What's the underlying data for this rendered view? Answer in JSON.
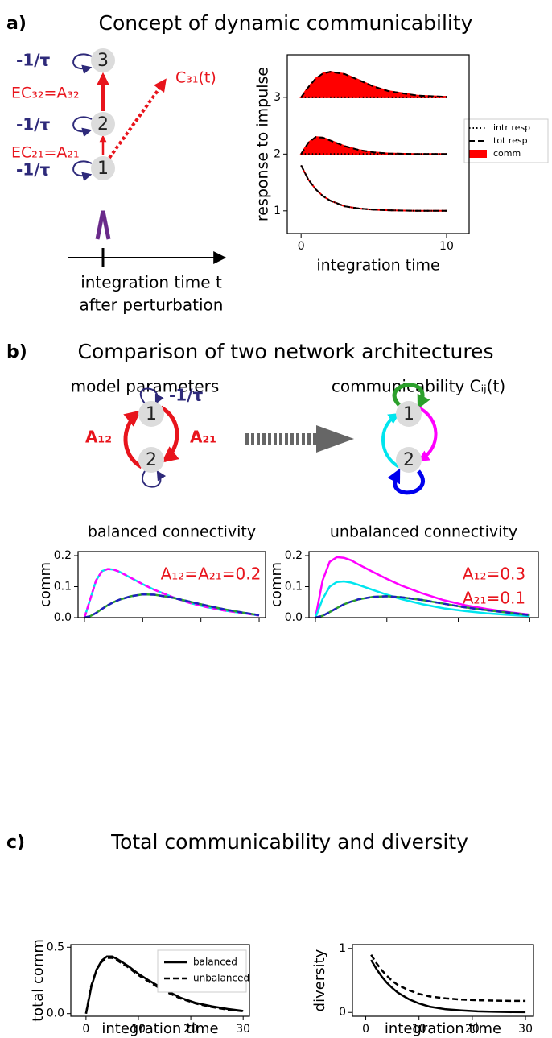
{
  "figure": {
    "panels": [
      {
        "letter": "a)",
        "title": "Concept of dynamic communicability"
      },
      {
        "letter": "b)",
        "title": "Comparison of two network architectures"
      },
      {
        "letter": "c)",
        "title": "Total communicability and diversity"
      }
    ]
  },
  "diagram_a": {
    "self_loops": [
      "-1/τ",
      "-1/τ",
      "-1/τ"
    ],
    "nodes": [
      "3",
      "2",
      "1"
    ],
    "edges": [
      "EC₃₂=A₃₂",
      "EC₂₁=A₂₁"
    ],
    "comm": "C₃₁(t)",
    "axis_label": [
      "integration time t",
      "after perturbation"
    ]
  },
  "diagram_b": {
    "left_title": "model parameters",
    "right_title": "communicability Cᵢⱼ(t)",
    "self_loop": "-1/τ",
    "left_nodes": [
      "1",
      "2"
    ],
    "edges": [
      "A₁₂",
      "A₂₁"
    ],
    "right_nodes": [
      "1",
      "2"
    ]
  },
  "chart_data": [
    {
      "type": "area",
      "xlabel": "integration time",
      "ylabel": "response to impulse",
      "xlim": [
        -0.95,
        11.55
      ],
      "ylim": [
        0.6,
        3.75
      ],
      "xticks": [
        0,
        10
      ],
      "yticks": [
        1,
        2,
        3
      ],
      "x": [
        0,
        0.5,
        1,
        1.5,
        2,
        3,
        4,
        5,
        6,
        8,
        10
      ],
      "fill_color": "#ff0000",
      "legend": [
        {
          "label": "intr resp",
          "style": "dotted"
        },
        {
          "label": "tot resp",
          "style": "dashed"
        },
        {
          "label": "comm",
          "style": "fill"
        }
      ],
      "nodes": [
        {
          "intr": [
            3,
            3,
            3,
            3,
            3,
            3,
            3,
            3,
            3,
            3,
            3
          ],
          "tot": [
            3,
            3.18,
            3.33,
            3.42,
            3.45,
            3.41,
            3.3,
            3.19,
            3.11,
            3.03,
            3.01
          ]
        },
        {
          "intr": [
            2,
            2,
            2,
            2,
            2,
            2,
            2,
            2,
            2,
            2,
            2
          ],
          "tot": [
            2,
            2.2,
            2.3,
            2.29,
            2.24,
            2.14,
            2.07,
            2.03,
            2.01,
            2,
            2
          ]
        },
        {
          "intr": [
            1.8,
            1.55,
            1.38,
            1.26,
            1.18,
            1.08,
            1.04,
            1.02,
            1.01,
            1,
            1
          ],
          "tot": [
            1.8,
            1.55,
            1.38,
            1.26,
            1.18,
            1.08,
            1.04,
            1.02,
            1.01,
            1,
            1
          ]
        }
      ]
    },
    {
      "type": "line",
      "title": "balanced connectivity",
      "ylabel": "comm",
      "xlim": [
        -1.1,
        31.1
      ],
      "ylim": [
        0,
        0.213
      ],
      "xticks": [
        0,
        10,
        20,
        30
      ],
      "xtick_labels": false,
      "yticks": [
        {
          "value": 0,
          "label": "0.0"
        },
        0.1,
        0.2
      ],
      "annotations": [
        "A₁₂=A₂₁=0.2"
      ],
      "annotation_color": "#e8141c",
      "x": [
        0,
        1,
        2,
        3,
        4,
        5,
        6,
        8,
        10,
        12,
        15,
        18,
        21,
        24,
        27,
        30
      ],
      "series": [
        {
          "color": "#00e5ee",
          "style": "solid",
          "values": [
            0,
            0.06,
            0.12,
            0.15,
            0.157,
            0.155,
            0.148,
            0.128,
            0.108,
            0.09,
            0.067,
            0.048,
            0.034,
            0.023,
            0.015,
            0.007
          ]
        },
        {
          "color": "#ff00ff",
          "style": "dashed",
          "values": [
            0,
            0.06,
            0.12,
            0.15,
            0.157,
            0.155,
            0.148,
            0.128,
            0.108,
            0.09,
            0.067,
            0.048,
            0.034,
            0.023,
            0.015,
            0.007
          ]
        },
        {
          "color": "#2ca02c",
          "style": "solid",
          "values": [
            0,
            0.005,
            0.015,
            0.028,
            0.04,
            0.05,
            0.058,
            0.069,
            0.075,
            0.074,
            0.065,
            0.052,
            0.039,
            0.027,
            0.017,
            0.008
          ]
        },
        {
          "color": "#1f1fbf",
          "style": "dashed",
          "values": [
            0,
            0.005,
            0.015,
            0.028,
            0.04,
            0.05,
            0.058,
            0.069,
            0.075,
            0.074,
            0.065,
            0.052,
            0.039,
            0.027,
            0.017,
            0.008
          ]
        }
      ]
    },
    {
      "type": "line",
      "title": "unbalanced connectivity",
      "ylabel": "comm",
      "xlim": [
        -0.9,
        31.2
      ],
      "ylim": [
        0,
        0.213
      ],
      "xticks": [
        0,
        10,
        20,
        30
      ],
      "xtick_labels": false,
      "yticks": [
        {
          "value": 0,
          "label": "0.0"
        },
        0.1,
        0.2
      ],
      "annotations": [
        "A₁₂=0.3",
        "A₂₁=0.1"
      ],
      "annotation_color": "#e8141c",
      "x": [
        0,
        1,
        2,
        3,
        4,
        5,
        6,
        8,
        10,
        12,
        15,
        18,
        21,
        24,
        27,
        30
      ],
      "series": [
        {
          "color": "#ff00ff",
          "style": "solid",
          "values": [
            0,
            0.12,
            0.18,
            0.195,
            0.193,
            0.185,
            0.172,
            0.148,
            0.125,
            0.104,
            0.078,
            0.056,
            0.04,
            0.028,
            0.018,
            0.01
          ]
        },
        {
          "color": "#00e5ee",
          "style": "solid",
          "values": [
            0,
            0.06,
            0.1,
            0.115,
            0.117,
            0.113,
            0.106,
            0.09,
            0.074,
            0.06,
            0.043,
            0.03,
            0.021,
            0.014,
            0.009,
            0.005
          ]
        },
        {
          "color": "#2ca02c",
          "style": "solid",
          "values": [
            0,
            0.006,
            0.018,
            0.031,
            0.043,
            0.052,
            0.059,
            0.067,
            0.069,
            0.066,
            0.057,
            0.045,
            0.033,
            0.024,
            0.016,
            0.008
          ]
        },
        {
          "color": "#1f1fbf",
          "style": "dashed",
          "values": [
            0,
            0.006,
            0.018,
            0.031,
            0.043,
            0.052,
            0.059,
            0.067,
            0.069,
            0.066,
            0.057,
            0.045,
            0.033,
            0.024,
            0.016,
            0.008
          ]
        }
      ]
    },
    {
      "type": "line",
      "xlabel": "integration time",
      "ylabel": "total comm",
      "xlim": [
        -2.9,
        31.2
      ],
      "ylim": [
        -0.02,
        0.52
      ],
      "xticks": [
        0,
        10,
        20,
        30
      ],
      "yticks": [
        {
          "value": 0,
          "label": "0.0"
        },
        0.5
      ],
      "x": [
        0,
        1,
        2,
        3,
        4,
        5,
        6,
        8,
        10,
        12,
        15,
        18,
        21,
        24,
        27,
        30
      ],
      "series": [
        {
          "name": "balanced",
          "color": "#000000",
          "style": "solid",
          "values": [
            0,
            0.2,
            0.33,
            0.4,
            0.43,
            0.43,
            0.41,
            0.36,
            0.3,
            0.25,
            0.18,
            0.12,
            0.08,
            0.055,
            0.035,
            0.02
          ]
        },
        {
          "name": "unbalanced",
          "color": "#000000",
          "style": "dashed",
          "values": [
            0,
            0.21,
            0.33,
            0.39,
            0.42,
            0.42,
            0.4,
            0.35,
            0.29,
            0.24,
            0.17,
            0.115,
            0.075,
            0.05,
            0.03,
            0.018
          ]
        }
      ]
    },
    {
      "type": "line",
      "xlabel": "integration time",
      "ylabel": "diversity",
      "xlim": [
        -2.5,
        31.5
      ],
      "ylim": [
        -0.06,
        1.06
      ],
      "xticks": [
        0,
        10,
        20,
        30
      ],
      "yticks": [
        0,
        1
      ],
      "x": [
        1,
        2,
        3,
        4,
        5,
        6,
        8,
        10,
        12,
        15,
        18,
        21,
        24,
        27,
        30
      ],
      "series": [
        {
          "color": "#000000",
          "style": "solid",
          "values": [
            0.82,
            0.68,
            0.56,
            0.46,
            0.38,
            0.31,
            0.21,
            0.14,
            0.09,
            0.05,
            0.03,
            0.017,
            0.01,
            0.006,
            0.004
          ]
        },
        {
          "color": "#000000",
          "style": "dashed",
          "values": [
            0.9,
            0.77,
            0.66,
            0.57,
            0.49,
            0.43,
            0.35,
            0.29,
            0.25,
            0.22,
            0.2,
            0.19,
            0.185,
            0.18,
            0.18
          ]
        }
      ]
    }
  ]
}
